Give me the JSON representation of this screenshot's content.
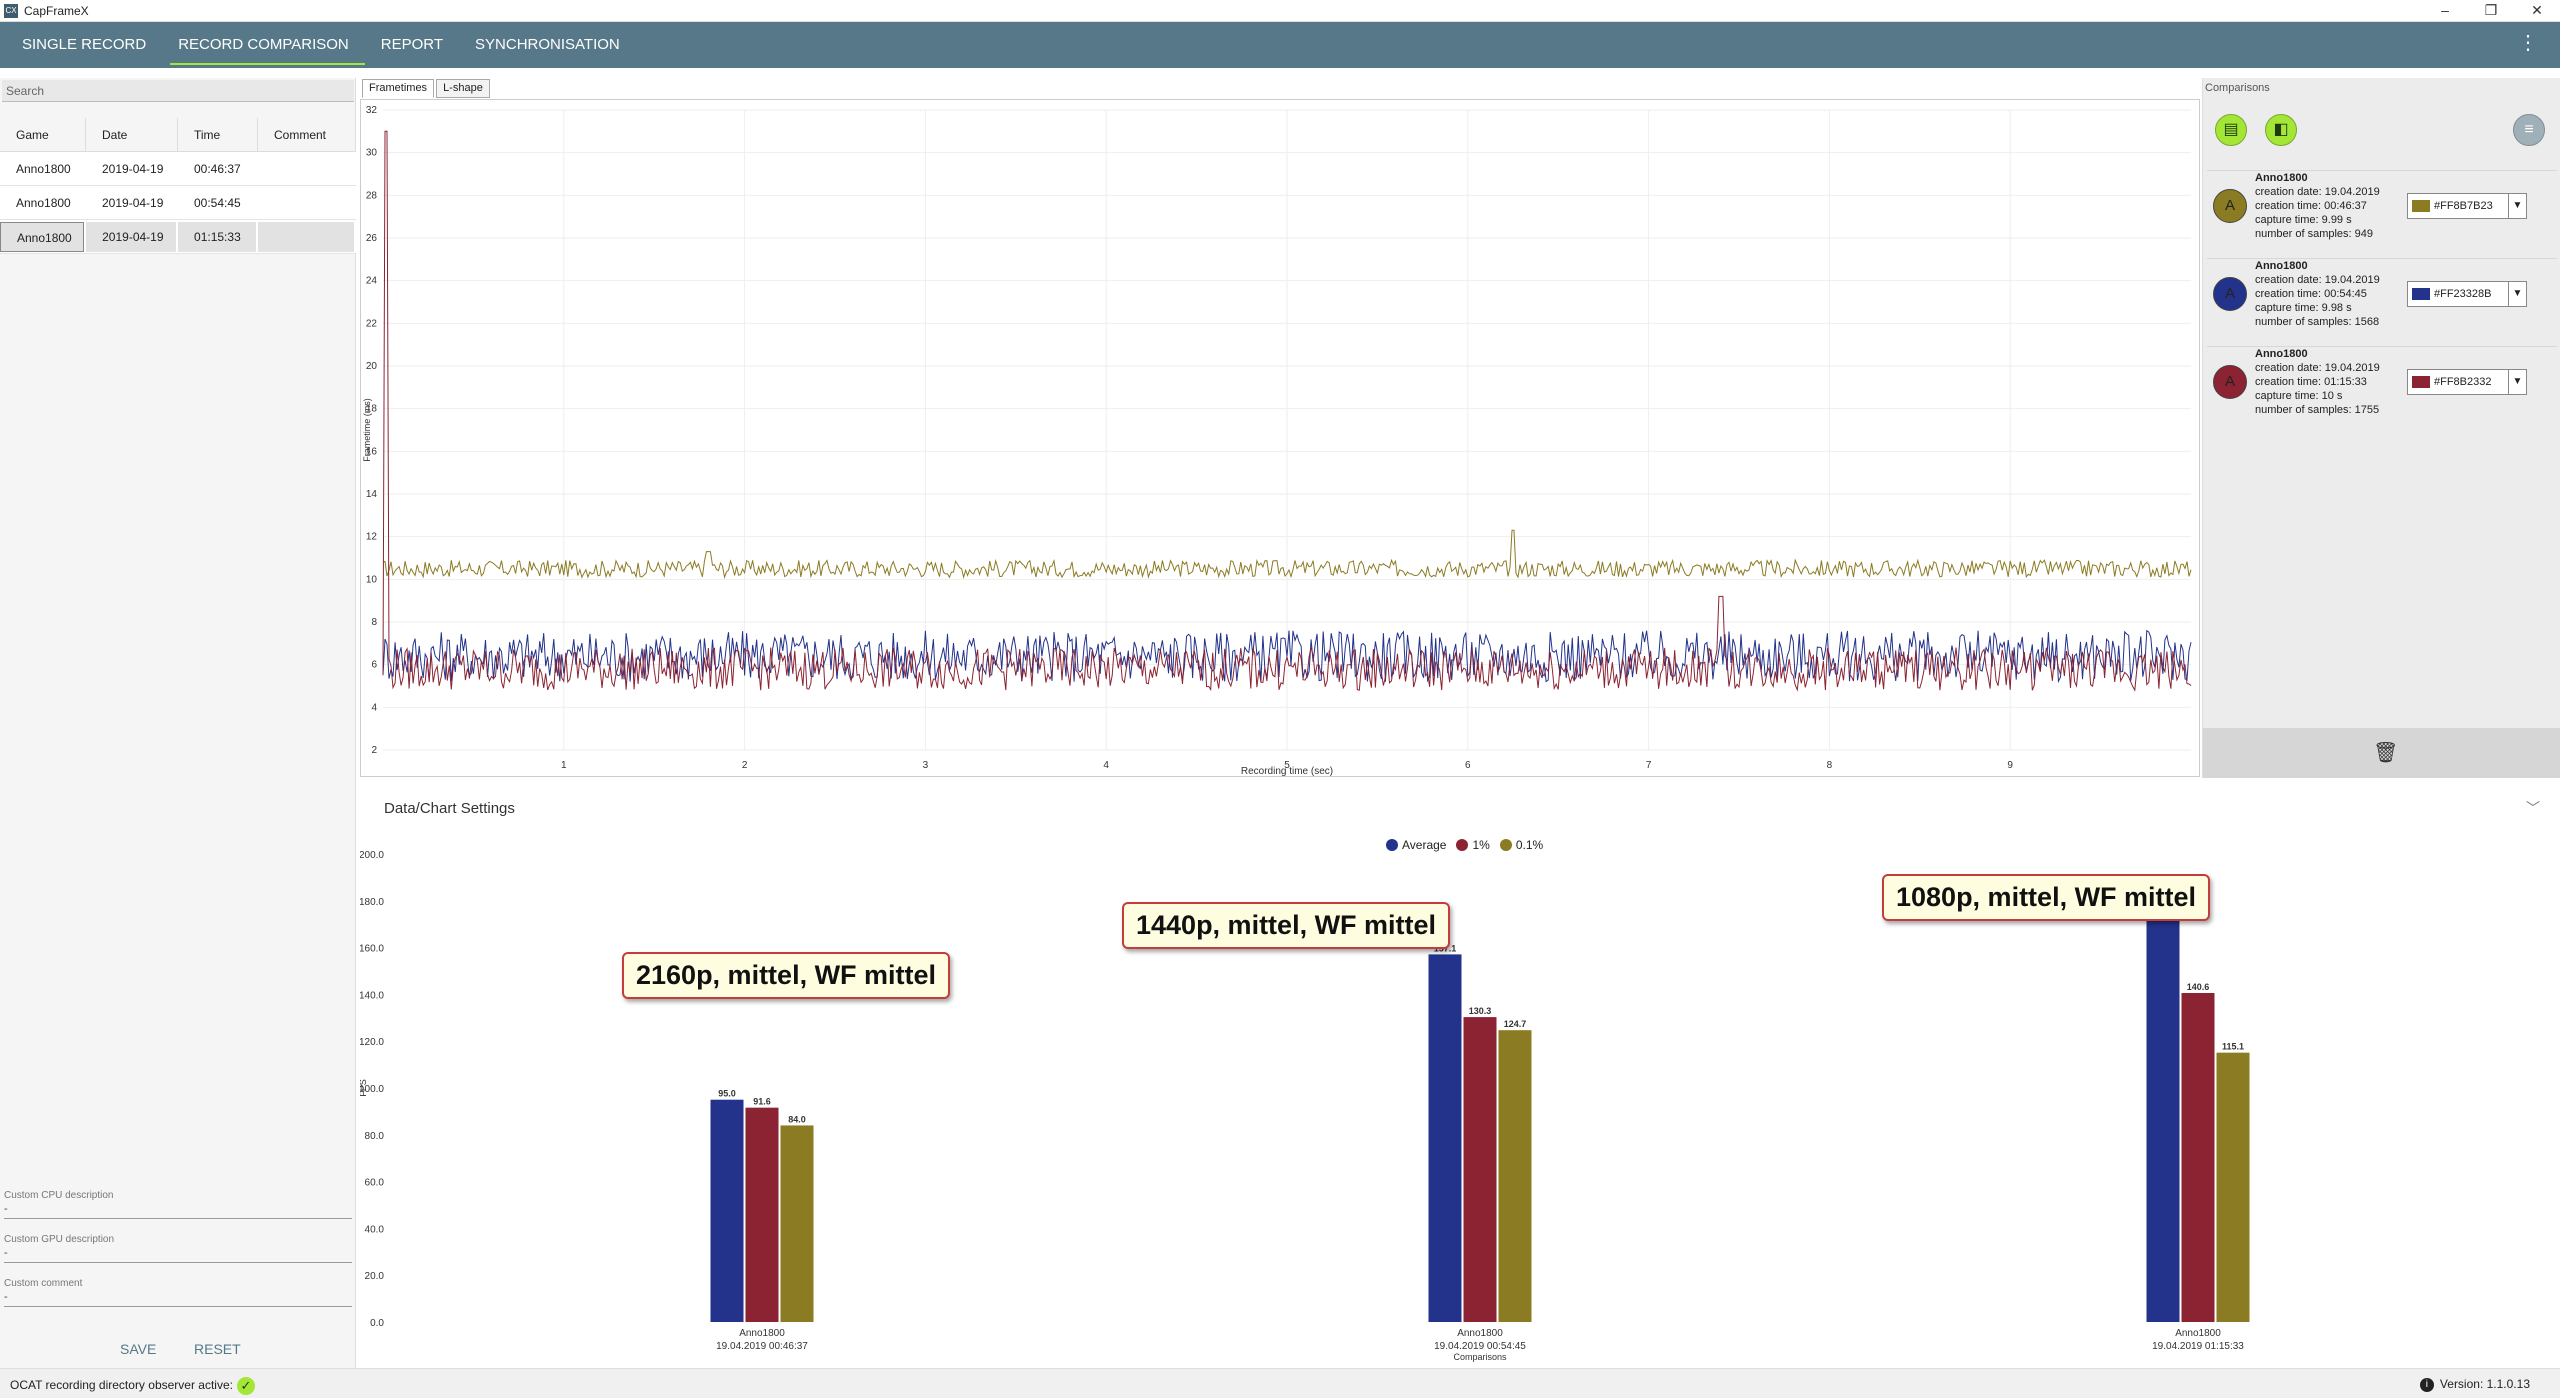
{
  "app": {
    "title": "CapFrameX",
    "logo_text": "CX"
  },
  "window_buttons": {
    "minimize": "–",
    "restore": "❐",
    "close": "✕"
  },
  "nav": {
    "tabs": [
      "SINGLE RECORD",
      "RECORD COMPARISON",
      "REPORT",
      "SYNCHRONISATION"
    ],
    "active": "RECORD COMPARISON",
    "menu": "⋮"
  },
  "left": {
    "search_placeholder": "Search",
    "columns": [
      "Game",
      "Date",
      "Time",
      "Comment"
    ],
    "rows": [
      {
        "game": "Anno1800",
        "date": "2019-04-19",
        "time": "00:46:37",
        "comment": ""
      },
      {
        "game": "Anno1800",
        "date": "2019-04-19",
        "time": "00:54:45",
        "comment": ""
      },
      {
        "game": "Anno1800",
        "date": "2019-04-19",
        "time": "01:15:33",
        "comment": ""
      }
    ],
    "selected_row": 2,
    "custom_cpu_label": "Custom CPU description",
    "custom_cpu_value": "-",
    "custom_gpu_label": "Custom GPU description",
    "custom_gpu_value": "-",
    "custom_comment_label": "Custom comment",
    "custom_comment_value": "-",
    "save": "SAVE",
    "reset": "RESET"
  },
  "chart_tabs": [
    "Frametimes",
    "L-shape"
  ],
  "comparisons": {
    "header": "Comparisons",
    "items": [
      {
        "avatar": "A",
        "name": "Anno1800",
        "creation_date": "creation date: 19.04.2019",
        "creation_time": "creation time: 00:46:37",
        "capture_time": "capture time: 9.99 s",
        "samples": "number of samples: 949",
        "color_label": "#FF8B7B23",
        "color": "#8B7B23"
      },
      {
        "avatar": "A",
        "name": "Anno1800",
        "creation_date": "creation date: 19.04.2019",
        "creation_time": "creation time: 00:54:45",
        "capture_time": "capture time: 9.98 s",
        "samples": "number of samples: 1568",
        "color_label": "#FF23328B",
        "color": "#23328B"
      },
      {
        "avatar": "A",
        "name": "Anno1800",
        "creation_date": "creation date: 19.04.2019",
        "creation_time": "creation time: 01:15:33",
        "capture_time": "capture time: 10 s",
        "samples": "number of samples: 1755",
        "color_label": "#FF8B2332",
        "color": "#8B2332"
      }
    ]
  },
  "settings_title": "Data/Chart Settings",
  "status": {
    "ocat": "OCAT recording directory observer active:",
    "version": "Version: 1.1.0.13"
  },
  "chart_data": [
    {
      "type": "line",
      "title": "",
      "xlabel": "Recording time (sec)",
      "ylabel": "Frametime (ms)",
      "xlim": [
        0,
        10
      ],
      "ylim": [
        2,
        32
      ],
      "x_ticks": [
        1,
        2,
        3,
        4,
        5,
        6,
        7,
        8,
        9
      ],
      "y_ticks": [
        2,
        4,
        6,
        8,
        10,
        12,
        14,
        16,
        18,
        20,
        22,
        24,
        26,
        28,
        30,
        32
      ],
      "series": [
        {
          "color": "#8B7B23",
          "mean": 10.5,
          "spread": 0.4,
          "spikes": [
            [
              1.8,
              11.3
            ],
            [
              6.25,
              12.3
            ]
          ]
        },
        {
          "color": "#23328B",
          "mean": 6.4,
          "spread": 1.2,
          "spikes": []
        },
        {
          "color": "#8B2332",
          "mean": 5.8,
          "spread": 1.0,
          "spikes": [
            [
              0.02,
              31
            ],
            [
              7.4,
              9.2
            ]
          ]
        }
      ]
    },
    {
      "type": "bar",
      "ylabel": "FPS",
      "ylim": [
        0,
        200
      ],
      "y_ticks": [
        "0.0",
        "20.0",
        "40.0",
        "60.0",
        "80.0",
        "100.0",
        "120.0",
        "140.0",
        "160.0",
        "180.0",
        "200.0"
      ],
      "legend": [
        {
          "name": "Average",
          "color": "#23328B"
        },
        {
          "name": "1%",
          "color": "#8B2332"
        },
        {
          "name": "0.1%",
          "color": "#8B7B23"
        }
      ],
      "groups": [
        {
          "label1": "Anno1800",
          "label2": "19.04.2019 00:46:37",
          "label3": "",
          "values": [
            95.0,
            91.6,
            84.0
          ],
          "callout": "2160p, mittel, WF mittel"
        },
        {
          "label1": "Anno1800",
          "label2": "19.04.2019 00:54:45",
          "label3": "Comparisons",
          "values": [
            157.1,
            130.3,
            124.7
          ],
          "callout": "1440p, mittel, WF mittel"
        },
        {
          "label1": "Anno1800",
          "label2": "19.04.2019 01:15:33",
          "label3": "",
          "values": [
            175.5,
            140.6,
            115.1
          ],
          "callout": "1080p, mittel, WF mittel"
        }
      ]
    }
  ]
}
